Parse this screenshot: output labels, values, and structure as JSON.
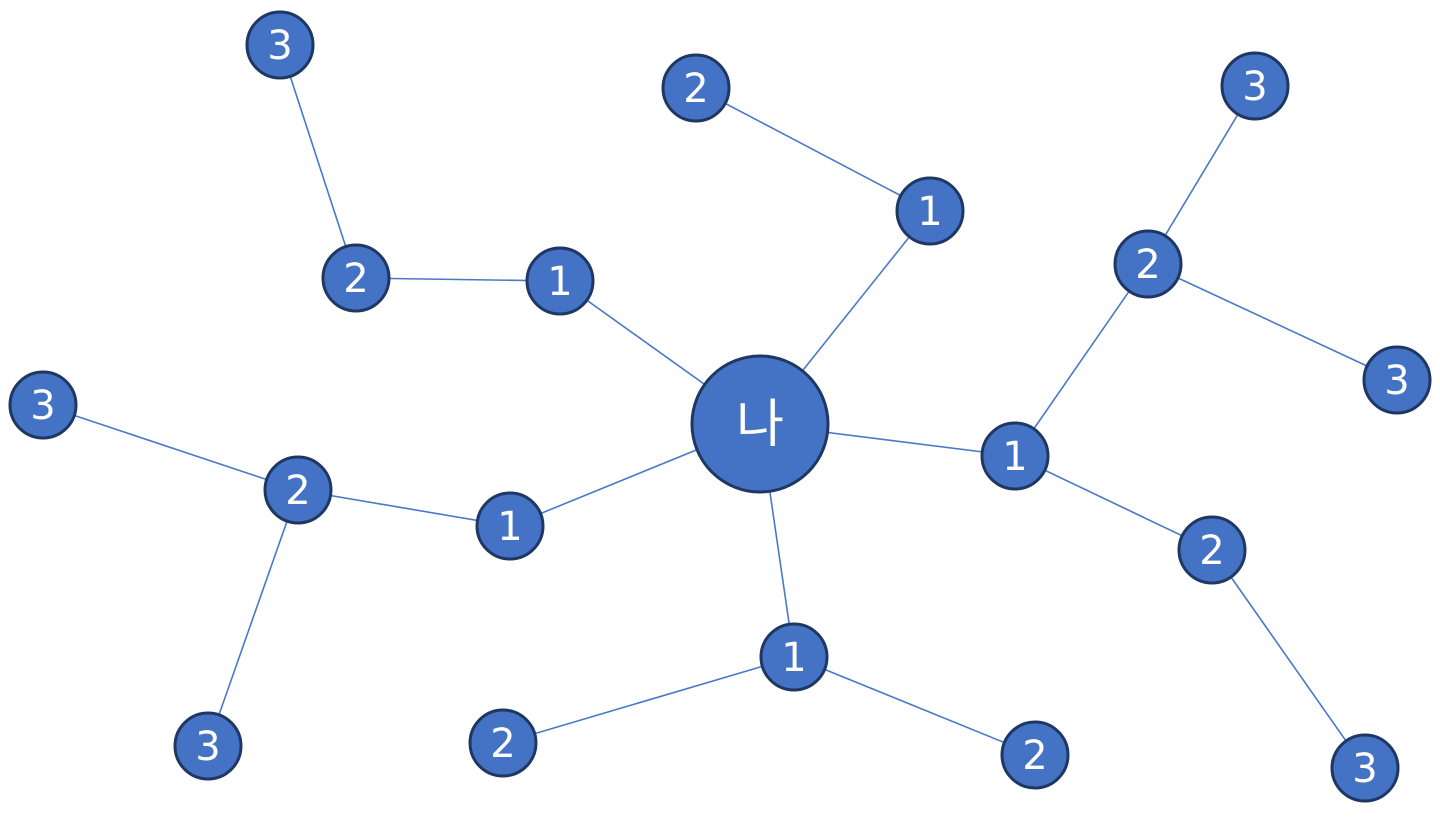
{
  "diagram": {
    "center": {
      "id": "me",
      "label": "나"
    },
    "nodes": [
      {
        "id": "a1",
        "label": "1"
      },
      {
        "id": "a2",
        "label": "2"
      },
      {
        "id": "a3",
        "label": "3"
      },
      {
        "id": "b1",
        "label": "1"
      },
      {
        "id": "b2",
        "label": "2"
      },
      {
        "id": "c1",
        "label": "1"
      },
      {
        "id": "c2",
        "label": "2"
      },
      {
        "id": "c3a",
        "label": "3"
      },
      {
        "id": "c3b",
        "label": "3"
      },
      {
        "id": "d1",
        "label": "1"
      },
      {
        "id": "d2a",
        "label": "2"
      },
      {
        "id": "d2b",
        "label": "2"
      },
      {
        "id": "e1",
        "label": "1"
      },
      {
        "id": "e2a",
        "label": "2"
      },
      {
        "id": "e3a",
        "label": "3"
      },
      {
        "id": "e3b",
        "label": "3"
      },
      {
        "id": "e2b",
        "label": "2"
      },
      {
        "id": "e3c",
        "label": "3"
      }
    ],
    "edges": [
      [
        "me",
        "a1"
      ],
      [
        "a1",
        "a2"
      ],
      [
        "a2",
        "a3"
      ],
      [
        "me",
        "b1"
      ],
      [
        "b1",
        "b2"
      ],
      [
        "me",
        "c1"
      ],
      [
        "c1",
        "c2"
      ],
      [
        "c2",
        "c3a"
      ],
      [
        "c2",
        "c3b"
      ],
      [
        "me",
        "d1"
      ],
      [
        "d1",
        "d2a"
      ],
      [
        "d1",
        "d2b"
      ],
      [
        "me",
        "e1"
      ],
      [
        "e1",
        "e2a"
      ],
      [
        "e2a",
        "e3a"
      ],
      [
        "e2a",
        "e3b"
      ],
      [
        "e1",
        "e2b"
      ],
      [
        "e2b",
        "e3c"
      ]
    ],
    "colors": {
      "node_fill": "#4472c4",
      "node_border": "#1f3763",
      "edge": "#4a78c8",
      "label": "#ffffff"
    }
  }
}
